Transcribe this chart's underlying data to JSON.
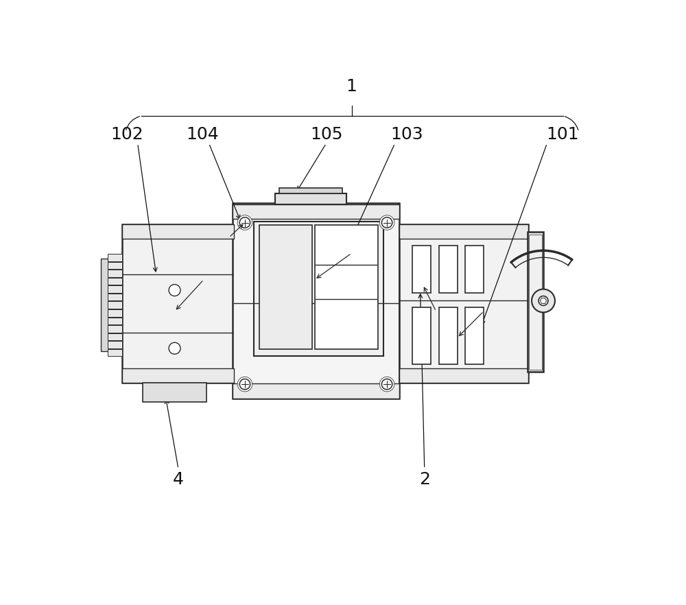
{
  "bg_color": "#ffffff",
  "lc": "#2a2a2a",
  "fc_light": "#f0f0f0",
  "fc_mid": "#e0e0e0",
  "fc_dark": "#cccccc",
  "fc_white": "#ffffff",
  "lw_main": 1.8,
  "lw_thin": 1.0,
  "lw_rib": 0.8,
  "label_fs": 18,
  "ann_lw": 0.9,
  "ann_color": "#111111"
}
